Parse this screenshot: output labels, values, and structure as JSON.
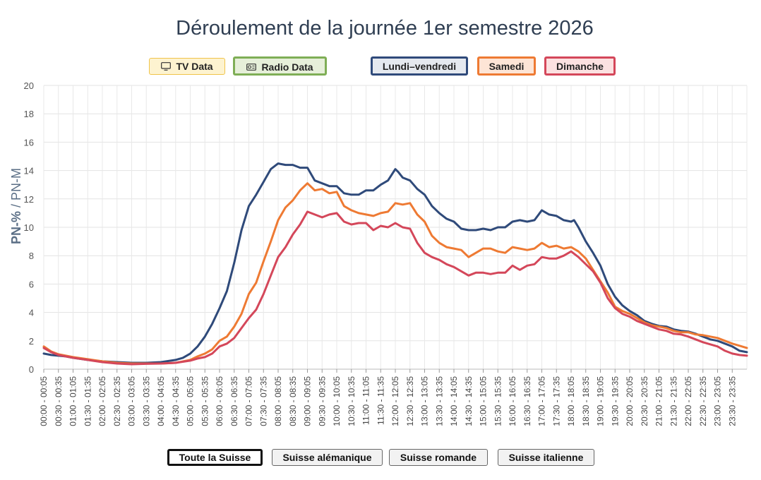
{
  "title": "Déroulement de la journée 1er semestre 2026",
  "media_buttons": [
    {
      "label": "TV Data",
      "icon": "tv-icon",
      "color": "#f0c44a",
      "active": false
    },
    {
      "label": "Radio Data",
      "icon": "radio-icon",
      "color": "#7fae56",
      "active": true
    }
  ],
  "day_buttons": [
    {
      "label": "Lundi–vendredi",
      "color": "#2f4a7a",
      "active": true
    },
    {
      "label": "Samedi",
      "color": "#ee7a33",
      "active": true
    },
    {
      "label": "Dimanche",
      "color": "#d4475a",
      "active": true
    }
  ],
  "region_buttons": [
    {
      "label": "Toute la Suisse",
      "active": true
    },
    {
      "label": "Suisse alémanique",
      "active": false
    },
    {
      "label": "Suisse romande",
      "active": false
    },
    {
      "label": "Suisse italienne",
      "active": false
    }
  ],
  "chart_data": {
    "type": "line",
    "title": "Déroulement de la journée 1er semestre 2026",
    "ylabel_bold": "PN-%",
    "ylabel_rest": " / PN-M",
    "ylim": [
      0,
      20
    ],
    "yticks": [
      0,
      2,
      4,
      6,
      8,
      10,
      12,
      14,
      16,
      18,
      20
    ],
    "grid": true,
    "x_tick_labels": [
      "00:00 - 00:05",
      "00:30 - 00:35",
      "01:00 - 01:05",
      "01:30 - 01:35",
      "02:00 - 02:05",
      "02:30 - 02:35",
      "03:00 - 03:05",
      "03:30 - 03:35",
      "04:00 - 04:05",
      "04:30 - 04:35",
      "05:00 - 05:05",
      "05:30 - 05:35",
      "06:00 - 06:05",
      "06:30 - 06:35",
      "07:00 - 07:05",
      "07:30 - 07:35",
      "08:00 - 08:05",
      "08:30 - 08:35",
      "09:00 - 09:05",
      "09:30 - 09:35",
      "10:00 - 10:05",
      "10:30 - 10:35",
      "11:00 - 11:05",
      "11:30 - 11:35",
      "12:00 - 12:05",
      "12:30 - 12:35",
      "13:00 - 13:05",
      "13:30 - 13:35",
      "14:00 - 14:05",
      "14:30 - 14:35",
      "15:00 - 15:05",
      "15:30 - 15:35",
      "16:00 - 16:05",
      "16:30 - 16:35",
      "17:00 - 17:05",
      "17:30 - 17:35",
      "18:00 - 18:05",
      "18:30 - 18:35",
      "19:00 - 19:05",
      "19:30 - 19:35",
      "20:00 - 20:05",
      "20:30 - 20:35",
      "21:00 - 21:05",
      "21:30 - 21:35",
      "22:00 - 22:05",
      "22:30 - 22:35",
      "23:00 - 23:05",
      "23:30 - 23:35"
    ],
    "x_hours": [
      0,
      0.5,
      1,
      1.5,
      2,
      2.5,
      3,
      3.5,
      4,
      4.5,
      5,
      5.5,
      6,
      6.5,
      7,
      7.5,
      8,
      8.5,
      9,
      9.5,
      10,
      10.5,
      11,
      11.5,
      12,
      12.5,
      13,
      13.5,
      14,
      14.5,
      15,
      15.5,
      16,
      16.5,
      17,
      17.5,
      18,
      18.5,
      19,
      19.5,
      20,
      20.5,
      21,
      21.5,
      22,
      22.5,
      23,
      23.5
    ],
    "x_unit": "hour of day (start of 5-minute slot)",
    "series": [
      {
        "name": "Lundi–vendredi",
        "color": "#2f4a7a",
        "points": [
          [
            0,
            1.1
          ],
          [
            0.25,
            1.0
          ],
          [
            0.5,
            0.95
          ],
          [
            0.75,
            0.9
          ],
          [
            1,
            0.8
          ],
          [
            1.5,
            0.65
          ],
          [
            2,
            0.55
          ],
          [
            2.5,
            0.5
          ],
          [
            3,
            0.45
          ],
          [
            3.5,
            0.45
          ],
          [
            4,
            0.5
          ],
          [
            4.5,
            0.65
          ],
          [
            4.75,
            0.8
          ],
          [
            5,
            1.1
          ],
          [
            5.25,
            1.6
          ],
          [
            5.5,
            2.3
          ],
          [
            5.75,
            3.2
          ],
          [
            6,
            4.3
          ],
          [
            6.25,
            5.5
          ],
          [
            6.5,
            7.5
          ],
          [
            6.75,
            9.8
          ],
          [
            7,
            11.5
          ],
          [
            7.25,
            12.3
          ],
          [
            7.5,
            13.2
          ],
          [
            7.75,
            14.1
          ],
          [
            8,
            14.5
          ],
          [
            8.25,
            14.4
          ],
          [
            8.5,
            14.4
          ],
          [
            8.75,
            14.2
          ],
          [
            9,
            14.2
          ],
          [
            9.25,
            13.3
          ],
          [
            9.5,
            13.1
          ],
          [
            9.75,
            12.9
          ],
          [
            10,
            12.9
          ],
          [
            10.25,
            12.4
          ],
          [
            10.5,
            12.3
          ],
          [
            10.75,
            12.3
          ],
          [
            11,
            12.6
          ],
          [
            11.25,
            12.6
          ],
          [
            11.5,
            13.0
          ],
          [
            11.75,
            13.3
          ],
          [
            12,
            14.1
          ],
          [
            12.1,
            13.9
          ],
          [
            12.25,
            13.5
          ],
          [
            12.5,
            13.3
          ],
          [
            12.75,
            12.7
          ],
          [
            13,
            12.3
          ],
          [
            13.25,
            11.5
          ],
          [
            13.5,
            11.0
          ],
          [
            13.75,
            10.6
          ],
          [
            14,
            10.4
          ],
          [
            14.25,
            9.9
          ],
          [
            14.5,
            9.8
          ],
          [
            14.75,
            9.8
          ],
          [
            15,
            9.9
          ],
          [
            15.25,
            9.8
          ],
          [
            15.5,
            10.0
          ],
          [
            15.75,
            10.0
          ],
          [
            16,
            10.4
          ],
          [
            16.25,
            10.5
          ],
          [
            16.5,
            10.4
          ],
          [
            16.75,
            10.5
          ],
          [
            17,
            11.2
          ],
          [
            17.25,
            10.9
          ],
          [
            17.5,
            10.8
          ],
          [
            17.75,
            10.5
          ],
          [
            18,
            10.4
          ],
          [
            18.1,
            10.5
          ],
          [
            18.25,
            10.0
          ],
          [
            18.5,
            9.0
          ],
          [
            18.75,
            8.2
          ],
          [
            19,
            7.3
          ],
          [
            19.25,
            6.0
          ],
          [
            19.5,
            5.1
          ],
          [
            19.75,
            4.5
          ],
          [
            20,
            4.1
          ],
          [
            20.25,
            3.8
          ],
          [
            20.5,
            3.4
          ],
          [
            20.75,
            3.2
          ],
          [
            21,
            3.05
          ],
          [
            21.25,
            3.0
          ],
          [
            21.5,
            2.8
          ],
          [
            21.75,
            2.7
          ],
          [
            22,
            2.65
          ],
          [
            22.25,
            2.5
          ],
          [
            22.5,
            2.3
          ],
          [
            22.75,
            2.1
          ],
          [
            23,
            2.0
          ],
          [
            23.25,
            1.8
          ],
          [
            23.5,
            1.6
          ],
          [
            23.75,
            1.3
          ],
          [
            24,
            1.2
          ]
        ]
      },
      {
        "name": "Samedi",
        "color": "#ee7a33",
        "points": [
          [
            0,
            1.6
          ],
          [
            0.25,
            1.25
          ],
          [
            0.5,
            1.05
          ],
          [
            0.75,
            0.95
          ],
          [
            1,
            0.85
          ],
          [
            1.5,
            0.7
          ],
          [
            2,
            0.55
          ],
          [
            2.5,
            0.45
          ],
          [
            3,
            0.4
          ],
          [
            3.5,
            0.4
          ],
          [
            4,
            0.4
          ],
          [
            4.5,
            0.45
          ],
          [
            5,
            0.65
          ],
          [
            5.25,
            0.9
          ],
          [
            5.5,
            1.1
          ],
          [
            5.75,
            1.4
          ],
          [
            6,
            2.0
          ],
          [
            6.25,
            2.3
          ],
          [
            6.5,
            3.0
          ],
          [
            6.75,
            3.9
          ],
          [
            7,
            5.3
          ],
          [
            7.25,
            6.1
          ],
          [
            7.5,
            7.6
          ],
          [
            7.75,
            9.0
          ],
          [
            8,
            10.5
          ],
          [
            8.25,
            11.4
          ],
          [
            8.5,
            11.9
          ],
          [
            8.75,
            12.6
          ],
          [
            9,
            13.1
          ],
          [
            9.25,
            12.6
          ],
          [
            9.5,
            12.7
          ],
          [
            9.75,
            12.4
          ],
          [
            10,
            12.5
          ],
          [
            10.25,
            11.5
          ],
          [
            10.5,
            11.2
          ],
          [
            10.75,
            11.0
          ],
          [
            11,
            10.9
          ],
          [
            11.25,
            10.8
          ],
          [
            11.5,
            11.0
          ],
          [
            11.75,
            11.1
          ],
          [
            12,
            11.7
          ],
          [
            12.25,
            11.6
          ],
          [
            12.5,
            11.7
          ],
          [
            12.75,
            10.9
          ],
          [
            13,
            10.4
          ],
          [
            13.25,
            9.4
          ],
          [
            13.5,
            8.9
          ],
          [
            13.75,
            8.6
          ],
          [
            14,
            8.5
          ],
          [
            14.25,
            8.4
          ],
          [
            14.5,
            7.9
          ],
          [
            14.75,
            8.2
          ],
          [
            15,
            8.5
          ],
          [
            15.25,
            8.5
          ],
          [
            15.5,
            8.3
          ],
          [
            15.75,
            8.2
          ],
          [
            16,
            8.6
          ],
          [
            16.25,
            8.5
          ],
          [
            16.5,
            8.4
          ],
          [
            16.75,
            8.5
          ],
          [
            17,
            8.9
          ],
          [
            17.25,
            8.6
          ],
          [
            17.5,
            8.7
          ],
          [
            17.75,
            8.5
          ],
          [
            18,
            8.6
          ],
          [
            18.25,
            8.3
          ],
          [
            18.5,
            7.8
          ],
          [
            18.75,
            7.0
          ],
          [
            19,
            6.2
          ],
          [
            19.25,
            5.4
          ],
          [
            19.5,
            4.4
          ],
          [
            19.75,
            4.1
          ],
          [
            20,
            3.9
          ],
          [
            20.25,
            3.6
          ],
          [
            20.5,
            3.3
          ],
          [
            20.75,
            3.1
          ],
          [
            21,
            3.0
          ],
          [
            21.25,
            2.9
          ],
          [
            21.5,
            2.7
          ],
          [
            21.75,
            2.6
          ],
          [
            22,
            2.6
          ],
          [
            22.25,
            2.45
          ],
          [
            22.5,
            2.4
          ],
          [
            22.75,
            2.3
          ],
          [
            23,
            2.2
          ],
          [
            23.25,
            2.0
          ],
          [
            23.5,
            1.8
          ],
          [
            23.75,
            1.65
          ],
          [
            24,
            1.5
          ]
        ]
      },
      {
        "name": "Dimanche",
        "color": "#d4475a",
        "points": [
          [
            0,
            1.5
          ],
          [
            0.25,
            1.2
          ],
          [
            0.5,
            1.0
          ],
          [
            0.75,
            0.9
          ],
          [
            1,
            0.8
          ],
          [
            1.5,
            0.65
          ],
          [
            2,
            0.5
          ],
          [
            2.5,
            0.4
          ],
          [
            3,
            0.35
          ],
          [
            3.5,
            0.38
          ],
          [
            4,
            0.4
          ],
          [
            4.5,
            0.45
          ],
          [
            5,
            0.6
          ],
          [
            5.25,
            0.75
          ],
          [
            5.5,
            0.85
          ],
          [
            5.75,
            1.1
          ],
          [
            6,
            1.6
          ],
          [
            6.25,
            1.8
          ],
          [
            6.5,
            2.2
          ],
          [
            6.75,
            2.9
          ],
          [
            7,
            3.6
          ],
          [
            7.25,
            4.2
          ],
          [
            7.5,
            5.3
          ],
          [
            7.75,
            6.6
          ],
          [
            8,
            7.9
          ],
          [
            8.25,
            8.6
          ],
          [
            8.5,
            9.5
          ],
          [
            8.75,
            10.2
          ],
          [
            9,
            11.1
          ],
          [
            9.25,
            10.9
          ],
          [
            9.5,
            10.7
          ],
          [
            9.75,
            10.9
          ],
          [
            10,
            11.0
          ],
          [
            10.25,
            10.4
          ],
          [
            10.5,
            10.2
          ],
          [
            10.75,
            10.3
          ],
          [
            11,
            10.3
          ],
          [
            11.25,
            9.8
          ],
          [
            11.5,
            10.1
          ],
          [
            11.75,
            10.0
          ],
          [
            12,
            10.3
          ],
          [
            12.25,
            10.0
          ],
          [
            12.5,
            9.9
          ],
          [
            12.75,
            8.9
          ],
          [
            13,
            8.2
          ],
          [
            13.25,
            7.9
          ],
          [
            13.5,
            7.7
          ],
          [
            13.75,
            7.4
          ],
          [
            14,
            7.2
          ],
          [
            14.25,
            6.9
          ],
          [
            14.5,
            6.6
          ],
          [
            14.75,
            6.8
          ],
          [
            15,
            6.8
          ],
          [
            15.25,
            6.7
          ],
          [
            15.5,
            6.8
          ],
          [
            15.75,
            6.8
          ],
          [
            16,
            7.3
          ],
          [
            16.25,
            7.0
          ],
          [
            16.5,
            7.3
          ],
          [
            16.75,
            7.4
          ],
          [
            17,
            7.9
          ],
          [
            17.25,
            7.8
          ],
          [
            17.5,
            7.8
          ],
          [
            17.75,
            8.0
          ],
          [
            18,
            8.3
          ],
          [
            18.25,
            7.9
          ],
          [
            18.5,
            7.4
          ],
          [
            18.75,
            6.9
          ],
          [
            19,
            6.1
          ],
          [
            19.25,
            5.0
          ],
          [
            19.5,
            4.3
          ],
          [
            19.75,
            3.9
          ],
          [
            20,
            3.7
          ],
          [
            20.25,
            3.4
          ],
          [
            20.5,
            3.2
          ],
          [
            20.75,
            3.0
          ],
          [
            21,
            2.8
          ],
          [
            21.25,
            2.7
          ],
          [
            21.5,
            2.5
          ],
          [
            21.75,
            2.45
          ],
          [
            22,
            2.3
          ],
          [
            22.25,
            2.1
          ],
          [
            22.5,
            1.9
          ],
          [
            22.75,
            1.75
          ],
          [
            23,
            1.6
          ],
          [
            23.25,
            1.3
          ],
          [
            23.5,
            1.1
          ],
          [
            23.75,
            1.0
          ],
          [
            24,
            0.95
          ]
        ]
      }
    ]
  }
}
